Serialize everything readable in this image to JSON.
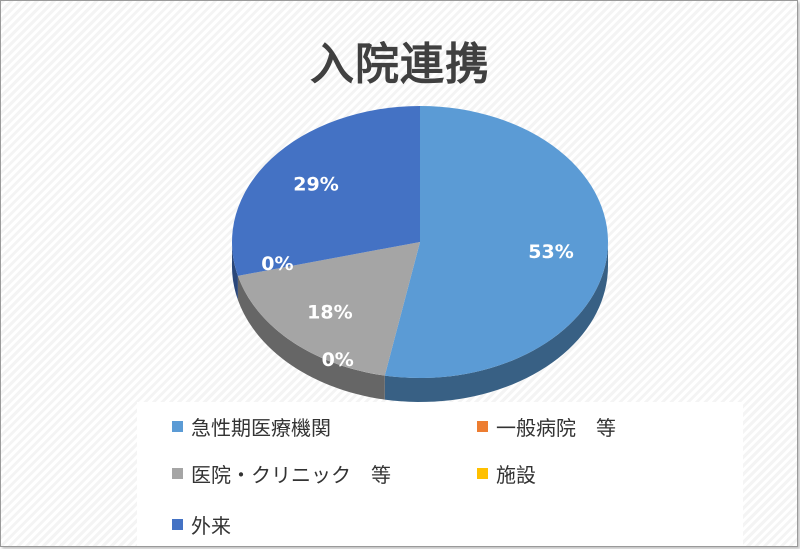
{
  "chart_data": {
    "type": "pie",
    "title": "入院連携",
    "categories": [
      "急性期医療機関",
      "一般病院　等",
      "医院・クリニック　等",
      "施設",
      "外来"
    ],
    "values": [
      53,
      0,
      18,
      0,
      29
    ],
    "data_labels": [
      "53%",
      "0%",
      "18%",
      "0%",
      "29%"
    ],
    "colors": [
      "#5b9bd5",
      "#ed7d31",
      "#a5a5a5",
      "#ffc000",
      "#4472c4"
    ],
    "legend_position": "bottom",
    "style": "3d"
  }
}
